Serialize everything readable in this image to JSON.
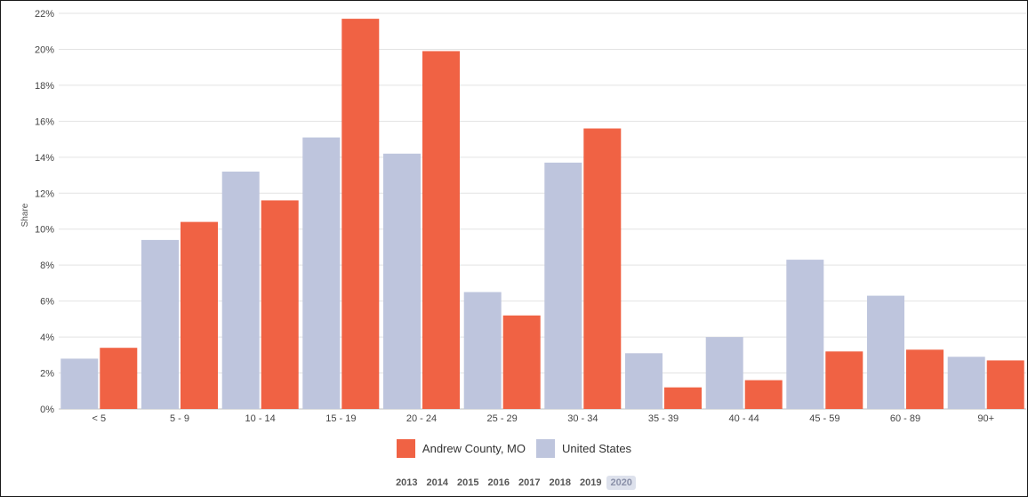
{
  "chart_data": {
    "type": "bar",
    "categories": [
      "< 5",
      "5 - 9",
      "10 - 14",
      "15 - 19",
      "20 - 24",
      "25 - 29",
      "30 - 34",
      "35 - 39",
      "40 - 44",
      "45 - 59",
      "60 - 89",
      "90+"
    ],
    "series": [
      {
        "name": "United States",
        "color": "#bec5dd",
        "values": [
          2.8,
          9.4,
          13.2,
          15.1,
          14.2,
          6.5,
          13.7,
          3.1,
          4.0,
          8.3,
          6.3,
          2.9
        ]
      },
      {
        "name": "Andrew County, MO",
        "color": "#f06244",
        "values": [
          3.4,
          10.4,
          11.6,
          21.7,
          19.9,
          5.2,
          15.6,
          1.2,
          1.6,
          3.2,
          3.3,
          2.7
        ]
      }
    ],
    "ylabel": "Share",
    "ylim": [
      0,
      22
    ],
    "yticks": [
      "0%",
      "2%",
      "4%",
      "6%",
      "8%",
      "10%",
      "12%",
      "14%",
      "16%",
      "18%",
      "20%",
      "22%"
    ],
    "grid": true,
    "legend_placement": "bottom-center"
  },
  "legend": {
    "items": [
      {
        "label": "Andrew County, MO",
        "color": "#f06244"
      },
      {
        "label": "United States",
        "color": "#bec5dd"
      }
    ]
  },
  "years": {
    "items": [
      "2013",
      "2014",
      "2015",
      "2016",
      "2017",
      "2018",
      "2019",
      "2020"
    ],
    "selected": "2020"
  }
}
